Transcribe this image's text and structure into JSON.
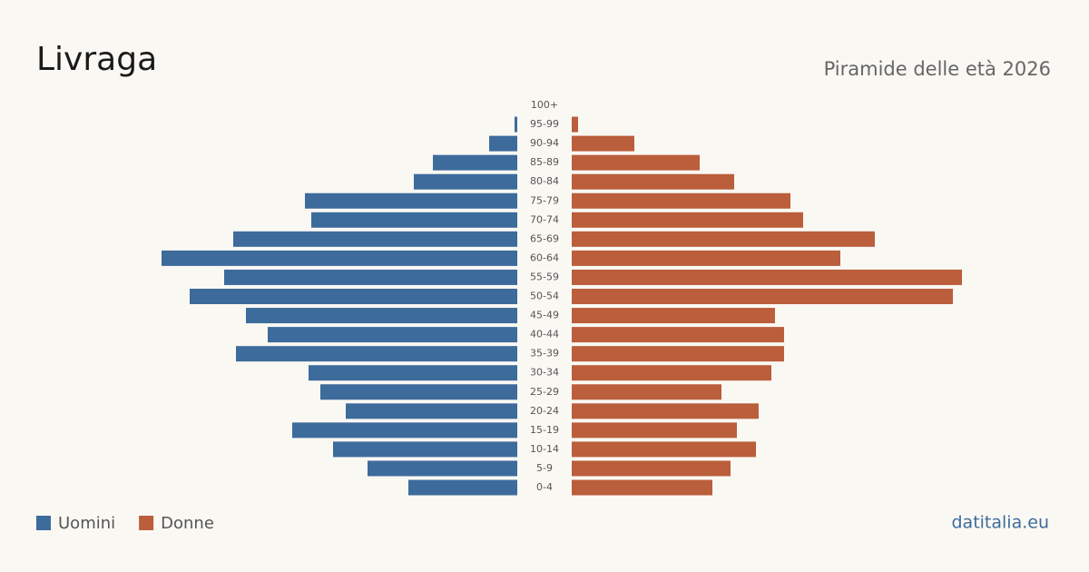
{
  "chart_data": {
    "type": "pyramid",
    "title": "Livraga",
    "subtitle": "Piramide delle età 2026",
    "source": "datitalia.eu",
    "categories": [
      "0-4",
      "5-9",
      "10-14",
      "15-19",
      "20-24",
      "25-29",
      "30-34",
      "35-39",
      "40-44",
      "45-49",
      "50-54",
      "55-59",
      "60-64",
      "65-69",
      "70-74",
      "75-79",
      "80-84",
      "85-89",
      "90-94",
      "95-99",
      "100+"
    ],
    "series": [
      {
        "name": "Uomini",
        "color": "#3d6b9c",
        "values": [
          120,
          165,
          203,
          248,
          189,
          217,
          230,
          310,
          275,
          299,
          361,
          323,
          392,
          313,
          227,
          234,
          114,
          93,
          31,
          3,
          0
        ]
      },
      {
        "name": "Donne",
        "color": "#bb5e3c",
        "values": [
          155,
          175,
          203,
          182,
          206,
          165,
          220,
          234,
          234,
          224,
          420,
          430,
          296,
          334,
          255,
          241,
          179,
          141,
          69,
          7,
          0
        ]
      }
    ]
  }
}
